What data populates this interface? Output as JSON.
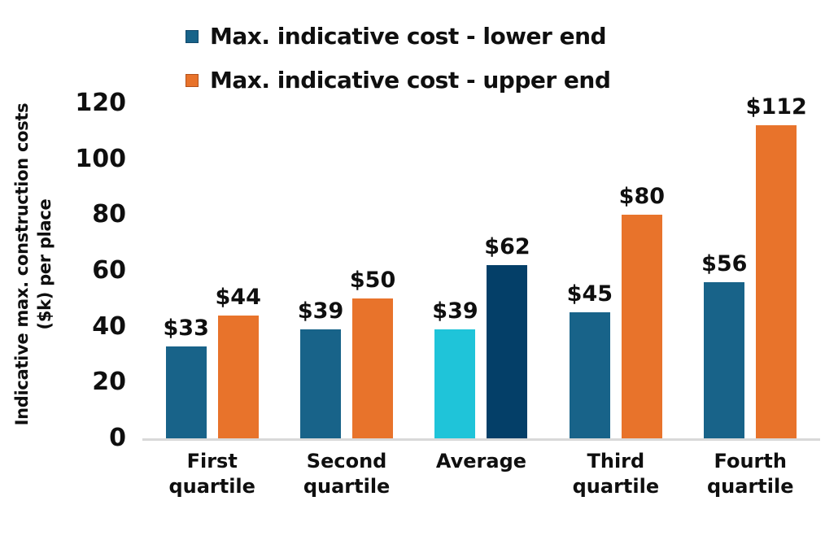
{
  "colors": {
    "lower_blue": "#186389",
    "upper_orange": "#e8732b",
    "average_lower_cyan": "#1fc4d9",
    "average_upper_navy": "#043f68",
    "axis_line": "#d9d9d9",
    "text": "#0f0f0f"
  },
  "legend": {
    "items": [
      {
        "label": "Max. indicative cost - lower end",
        "color": "#186389",
        "border": "#11486b"
      },
      {
        "label": "Max. indicative cost - upper end",
        "color": "#e8732b",
        "border": "#b3521c"
      }
    ]
  },
  "y_axis": {
    "title_line1": "Indicative max. construction costs",
    "title_line2": "($k) per place",
    "ticks": [
      0,
      20,
      40,
      60,
      80,
      100,
      120
    ],
    "max": 120
  },
  "chart_data": {
    "type": "bar",
    "title": "",
    "xlabel": "",
    "ylabel": "Indicative max. construction costs ($k) per place",
    "ylim": [
      0,
      120
    ],
    "grid": false,
    "legend_position": "top",
    "categories": [
      "First quartile",
      "Second quartile",
      "Average",
      "Third quartile",
      "Fourth quartile"
    ],
    "series": [
      {
        "name": "Max. indicative cost - lower end",
        "values": [
          33,
          39,
          39,
          45,
          56
        ]
      },
      {
        "name": "Max. indicative cost - upper end",
        "values": [
          44,
          50,
          62,
          80,
          112
        ]
      }
    ],
    "groups": [
      {
        "category": "First quartile",
        "bars": [
          {
            "value": 33,
            "label": "$33",
            "color": "#186389"
          },
          {
            "value": 44,
            "label": "$44",
            "color": "#e8732b"
          }
        ]
      },
      {
        "category": "Second quartile",
        "bars": [
          {
            "value": 39,
            "label": "$39",
            "color": "#186389"
          },
          {
            "value": 50,
            "label": "$50",
            "color": "#e8732b"
          }
        ]
      },
      {
        "category": "Average",
        "bars": [
          {
            "value": 39,
            "label": "$39",
            "color": "#1fc4d9"
          },
          {
            "value": 62,
            "label": "$62",
            "color": "#043f68"
          }
        ]
      },
      {
        "category": "Third quartile",
        "bars": [
          {
            "value": 45,
            "label": "$45",
            "color": "#186389"
          },
          {
            "value": 80,
            "label": "$80",
            "color": "#e8732b"
          }
        ]
      },
      {
        "category": "Fourth quartile",
        "bars": [
          {
            "value": 56,
            "label": "$56",
            "color": "#186389"
          },
          {
            "value": 112,
            "label": "$112",
            "color": "#e8732b"
          }
        ]
      }
    ]
  }
}
